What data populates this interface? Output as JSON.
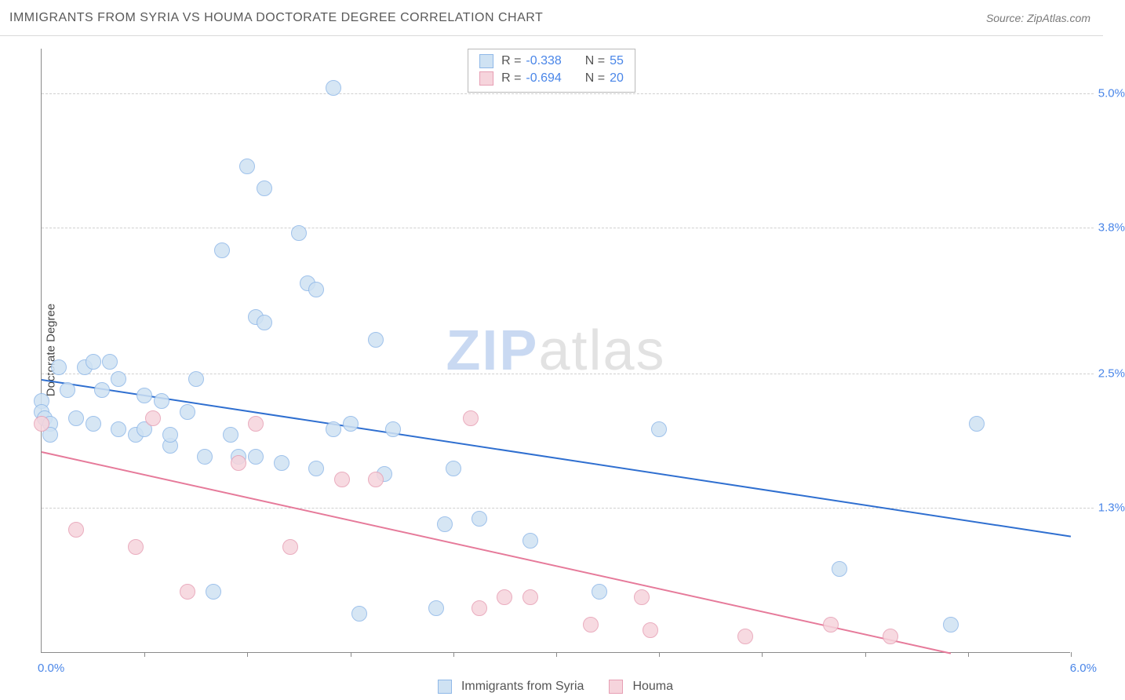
{
  "header": {
    "title": "IMMIGRANTS FROM SYRIA VS HOUMA DOCTORATE DEGREE CORRELATION CHART",
    "source_prefix": "Source: ",
    "source_name": "ZipAtlas.com"
  },
  "ylabel": "Doctorate Degree",
  "watermark": {
    "part1": "ZIP",
    "part2": "atlas"
  },
  "chart": {
    "type": "scatter-with-trend",
    "background": "#ffffff",
    "grid_color": "#d0d0d0",
    "axis_color": "#8a8a8a",
    "xlim": [
      0.0,
      6.0
    ],
    "ylim": [
      0.0,
      5.4
    ],
    "x_axis": {
      "min_label": "0.0%",
      "max_label": "6.0%",
      "label_color": "#4a86e8",
      "tick_positions": [
        0.6,
        1.2,
        1.8,
        2.4,
        3.0,
        3.6,
        4.2,
        4.8,
        5.4,
        6.0
      ]
    },
    "y_axis": {
      "ticks": [
        {
          "value": 1.3,
          "label": "1.3%"
        },
        {
          "value": 2.5,
          "label": "2.5%"
        },
        {
          "value": 3.8,
          "label": "3.8%"
        },
        {
          "value": 5.0,
          "label": "5.0%"
        }
      ],
      "label_color": "#4a86e8"
    },
    "series": [
      {
        "id": "syria",
        "label": "Immigrants from Syria",
        "marker_fill": "#cfe2f3",
        "marker_stroke": "#8fb8e8",
        "marker_radius": 10,
        "line_color": "#2f6fd0",
        "R": "-0.338",
        "N": "55",
        "trend": {
          "x1": 0.0,
          "y1": 2.45,
          "x2": 6.0,
          "y2": 1.05
        },
        "points": [
          [
            0.0,
            2.25
          ],
          [
            0.0,
            2.15
          ],
          [
            0.02,
            2.1
          ],
          [
            0.05,
            2.05
          ],
          [
            0.05,
            1.95
          ],
          [
            0.1,
            2.55
          ],
          [
            0.15,
            2.35
          ],
          [
            0.2,
            2.1
          ],
          [
            0.25,
            2.55
          ],
          [
            0.3,
            2.6
          ],
          [
            0.3,
            2.05
          ],
          [
            0.35,
            2.35
          ],
          [
            0.4,
            2.6
          ],
          [
            0.45,
            2.0
          ],
          [
            0.45,
            2.45
          ],
          [
            0.55,
            1.95
          ],
          [
            0.6,
            2.3
          ],
          [
            0.6,
            2.0
          ],
          [
            0.7,
            2.25
          ],
          [
            0.75,
            1.85
          ],
          [
            0.75,
            1.95
          ],
          [
            0.85,
            2.15
          ],
          [
            0.9,
            2.45
          ],
          [
            0.95,
            1.75
          ],
          [
            1.0,
            0.55
          ],
          [
            1.05,
            3.6
          ],
          [
            1.1,
            1.95
          ],
          [
            1.15,
            1.75
          ],
          [
            1.2,
            4.35
          ],
          [
            1.25,
            1.75
          ],
          [
            1.25,
            3.0
          ],
          [
            1.3,
            2.95
          ],
          [
            1.3,
            4.15
          ],
          [
            1.4,
            1.7
          ],
          [
            1.5,
            3.75
          ],
          [
            1.55,
            3.3
          ],
          [
            1.6,
            1.65
          ],
          [
            1.6,
            3.25
          ],
          [
            1.7,
            2.0
          ],
          [
            1.7,
            5.05
          ],
          [
            1.8,
            2.05
          ],
          [
            1.85,
            0.35
          ],
          [
            1.95,
            2.8
          ],
          [
            2.0,
            1.6
          ],
          [
            2.05,
            2.0
          ],
          [
            2.3,
            0.4
          ],
          [
            2.35,
            1.15
          ],
          [
            2.4,
            1.65
          ],
          [
            2.55,
            1.2
          ],
          [
            2.85,
            1.0
          ],
          [
            3.25,
            0.55
          ],
          [
            3.6,
            2.0
          ],
          [
            4.65,
            0.75
          ],
          [
            5.3,
            0.25
          ],
          [
            5.45,
            2.05
          ]
        ]
      },
      {
        "id": "houma",
        "label": "Houma",
        "marker_fill": "#f6d4dc",
        "marker_stroke": "#e79fb4",
        "marker_radius": 10,
        "line_color": "#e67a9a",
        "R": "-0.694",
        "N": "20",
        "trend": {
          "x1": 0.0,
          "y1": 1.8,
          "x2": 5.3,
          "y2": 0.0
        },
        "points": [
          [
            0.0,
            2.05
          ],
          [
            0.2,
            1.1
          ],
          [
            0.55,
            0.95
          ],
          [
            0.65,
            2.1
          ],
          [
            0.85,
            0.55
          ],
          [
            1.15,
            1.7
          ],
          [
            1.25,
            2.05
          ],
          [
            1.45,
            0.95
          ],
          [
            1.75,
            1.55
          ],
          [
            1.95,
            1.55
          ],
          [
            2.5,
            2.1
          ],
          [
            2.55,
            0.4
          ],
          [
            2.7,
            0.5
          ],
          [
            2.85,
            0.5
          ],
          [
            3.2,
            0.25
          ],
          [
            3.5,
            0.5
          ],
          [
            3.55,
            0.2
          ],
          [
            4.1,
            0.15
          ],
          [
            4.6,
            0.25
          ],
          [
            4.95,
            0.15
          ]
        ]
      }
    ]
  },
  "legend_top": {
    "r_label": "R =",
    "n_label": "N =",
    "text_color": "#555555",
    "value_color": "#4a86e8"
  },
  "legend_bottom": {
    "text_color": "#555555"
  }
}
